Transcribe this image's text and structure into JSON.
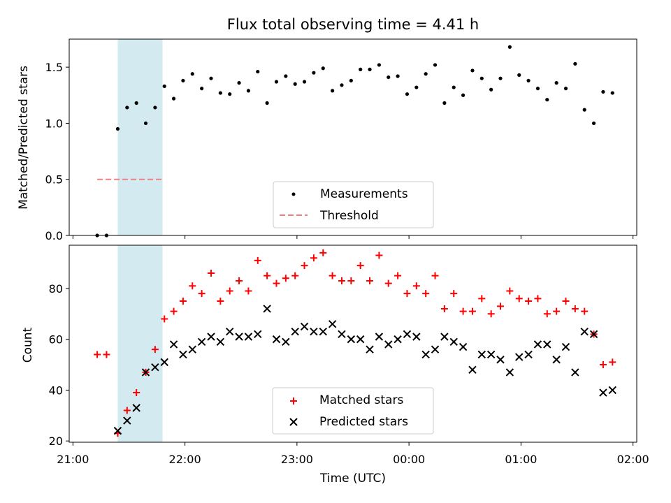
{
  "chart_data": [
    {
      "type": "scatter",
      "title": "Flux total observing time = 4.41 h",
      "xlabel": "",
      "ylabel": "Matched/Predicted stars",
      "xlim": [
        "20:58",
        "02:02"
      ],
      "ylim": [
        0,
        1.75
      ],
      "x_ticks": [
        "21:00",
        "22:00",
        "23:00",
        "00:00",
        "01:00",
        "02:00"
      ],
      "y_ticks": [
        "0.0",
        "0.5",
        "1.0",
        "1.5"
      ],
      "shaded_region": [
        "21:24",
        "21:48"
      ],
      "shaded_color": "#d3eaf0",
      "threshold": {
        "name": "Threshold",
        "value": 0.5,
        "from": "21:13",
        "to": "21:48",
        "color": "#f08080"
      },
      "legend": {
        "placement": "bottom-center",
        "entries": [
          "Measurements",
          "Threshold"
        ]
      },
      "series": [
        {
          "name": "Measurements",
          "color": "#000000",
          "marker": "dot",
          "points": [
            [
              "21:13",
              0.0
            ],
            [
              "21:18",
              0.0
            ],
            [
              "21:24",
              0.95
            ],
            [
              "21:29",
              1.14
            ],
            [
              "21:34",
              1.18
            ],
            [
              "21:39",
              1.0
            ],
            [
              "21:44",
              1.14
            ],
            [
              "21:49",
              1.33
            ],
            [
              "21:54",
              1.22
            ],
            [
              "21:59",
              1.38
            ],
            [
              "22:04",
              1.44
            ],
            [
              "22:09",
              1.31
            ],
            [
              "22:14",
              1.4
            ],
            [
              "22:19",
              1.27
            ],
            [
              "22:24",
              1.26
            ],
            [
              "22:29",
              1.36
            ],
            [
              "22:34",
              1.29
            ],
            [
              "22:39",
              1.46
            ],
            [
              "22:44",
              1.18
            ],
            [
              "22:49",
              1.37
            ],
            [
              "22:54",
              1.42
            ],
            [
              "22:59",
              1.35
            ],
            [
              "23:04",
              1.37
            ],
            [
              "23:09",
              1.45
            ],
            [
              "23:14",
              1.49
            ],
            [
              "23:19",
              1.29
            ],
            [
              "23:24",
              1.34
            ],
            [
              "23:29",
              1.38
            ],
            [
              "23:34",
              1.48
            ],
            [
              "23:39",
              1.48
            ],
            [
              "23:44",
              1.52
            ],
            [
              "23:49",
              1.41
            ],
            [
              "23:54",
              1.42
            ],
            [
              "23:59",
              1.26
            ],
            [
              "00:04",
              1.32
            ],
            [
              "00:09",
              1.44
            ],
            [
              "00:14",
              1.52
            ],
            [
              "00:19",
              1.18
            ],
            [
              "00:24",
              1.32
            ],
            [
              "00:29",
              1.25
            ],
            [
              "00:34",
              1.47
            ],
            [
              "00:39",
              1.4
            ],
            [
              "00:44",
              1.3
            ],
            [
              "00:49",
              1.4
            ],
            [
              "00:54",
              1.68
            ],
            [
              "00:59",
              1.43
            ],
            [
              "01:04",
              1.38
            ],
            [
              "01:09",
              1.31
            ],
            [
              "01:14",
              1.21
            ],
            [
              "01:19",
              1.36
            ],
            [
              "01:24",
              1.31
            ],
            [
              "01:29",
              1.53
            ],
            [
              "01:34",
              1.12
            ],
            [
              "01:39",
              1.0
            ],
            [
              "01:44",
              1.28
            ],
            [
              "01:49",
              1.27
            ]
          ]
        }
      ]
    },
    {
      "type": "scatter",
      "title": "",
      "xlabel": "Time (UTC)",
      "ylabel": "Count",
      "xlim": [
        "20:58",
        "02:02"
      ],
      "ylim": [
        19.5,
        97
      ],
      "x_ticks": [
        "21:00",
        "22:00",
        "23:00",
        "00:00",
        "01:00",
        "02:00"
      ],
      "y_ticks": [
        "20",
        "40",
        "60",
        "80"
      ],
      "shaded_region": [
        "21:24",
        "21:48"
      ],
      "shaded_color": "#d3eaf0",
      "legend": {
        "placement": "bottom-center",
        "entries": [
          "Matched stars",
          "Predicted stars"
        ]
      },
      "series": [
        {
          "name": "Matched stars",
          "color": "#ff0000",
          "marker": "plus",
          "points": [
            [
              "21:13",
              54
            ],
            [
              "21:18",
              54
            ],
            [
              "21:24",
              23
            ],
            [
              "21:29",
              32
            ],
            [
              "21:34",
              39
            ],
            [
              "21:39",
              47
            ],
            [
              "21:44",
              56
            ],
            [
              "21:49",
              68
            ],
            [
              "21:54",
              71
            ],
            [
              "21:59",
              75
            ],
            [
              "22:04",
              81
            ],
            [
              "22:09",
              78
            ],
            [
              "22:14",
              86
            ],
            [
              "22:19",
              75
            ],
            [
              "22:24",
              79
            ],
            [
              "22:29",
              83
            ],
            [
              "22:34",
              79
            ],
            [
              "22:39",
              91
            ],
            [
              "22:44",
              85
            ],
            [
              "22:49",
              82
            ],
            [
              "22:54",
              84
            ],
            [
              "22:59",
              85
            ],
            [
              "23:04",
              89
            ],
            [
              "23:09",
              92
            ],
            [
              "23:14",
              94
            ],
            [
              "23:19",
              85
            ],
            [
              "23:24",
              83
            ],
            [
              "23:29",
              83
            ],
            [
              "23:34",
              89
            ],
            [
              "23:39",
              83
            ],
            [
              "23:44",
              93
            ],
            [
              "23:49",
              82
            ],
            [
              "23:54",
              85
            ],
            [
              "23:59",
              78
            ],
            [
              "00:04",
              81
            ],
            [
              "00:09",
              78
            ],
            [
              "00:14",
              85
            ],
            [
              "00:19",
              72
            ],
            [
              "00:24",
              78
            ],
            [
              "00:29",
              71
            ],
            [
              "00:34",
              71
            ],
            [
              "00:39",
              76
            ],
            [
              "00:44",
              70
            ],
            [
              "00:49",
              73
            ],
            [
              "00:54",
              79
            ],
            [
              "00:59",
              76
            ],
            [
              "01:04",
              75
            ],
            [
              "01:09",
              76
            ],
            [
              "01:14",
              70
            ],
            [
              "01:19",
              71
            ],
            [
              "01:24",
              75
            ],
            [
              "01:29",
              72
            ],
            [
              "01:34",
              71
            ],
            [
              "01:39",
              62
            ],
            [
              "01:44",
              50
            ],
            [
              "01:49",
              51
            ]
          ]
        },
        {
          "name": "Predicted stars",
          "color": "#000000",
          "marker": "x",
          "points": [
            [
              "21:24",
              24
            ],
            [
              "21:29",
              28
            ],
            [
              "21:34",
              33
            ],
            [
              "21:39",
              47
            ],
            [
              "21:44",
              49
            ],
            [
              "21:49",
              51
            ],
            [
              "21:54",
              58
            ],
            [
              "21:59",
              54
            ],
            [
              "22:04",
              56
            ],
            [
              "22:09",
              59
            ],
            [
              "22:14",
              61
            ],
            [
              "22:19",
              59
            ],
            [
              "22:24",
              63
            ],
            [
              "22:29",
              61
            ],
            [
              "22:34",
              61
            ],
            [
              "22:39",
              62
            ],
            [
              "22:44",
              72
            ],
            [
              "22:49",
              60
            ],
            [
              "22:54",
              59
            ],
            [
              "22:59",
              63
            ],
            [
              "23:04",
              65
            ],
            [
              "23:09",
              63
            ],
            [
              "23:14",
              63
            ],
            [
              "23:19",
              66
            ],
            [
              "23:24",
              62
            ],
            [
              "23:29",
              60
            ],
            [
              "23:34",
              60
            ],
            [
              "23:39",
              56
            ],
            [
              "23:44",
              61
            ],
            [
              "23:49",
              58
            ],
            [
              "23:54",
              60
            ],
            [
              "23:59",
              62
            ],
            [
              "00:04",
              61
            ],
            [
              "00:09",
              54
            ],
            [
              "00:14",
              56
            ],
            [
              "00:19",
              61
            ],
            [
              "00:24",
              59
            ],
            [
              "00:29",
              57
            ],
            [
              "00:34",
              48
            ],
            [
              "00:39",
              54
            ],
            [
              "00:44",
              54
            ],
            [
              "00:49",
              52
            ],
            [
              "00:54",
              47
            ],
            [
              "00:59",
              53
            ],
            [
              "01:04",
              54
            ],
            [
              "01:09",
              58
            ],
            [
              "01:14",
              58
            ],
            [
              "01:19",
              52
            ],
            [
              "01:24",
              57
            ],
            [
              "01:29",
              47
            ],
            [
              "01:34",
              63
            ],
            [
              "01:39",
              62
            ],
            [
              "01:44",
              39
            ],
            [
              "01:49",
              40
            ]
          ]
        }
      ]
    }
  ]
}
